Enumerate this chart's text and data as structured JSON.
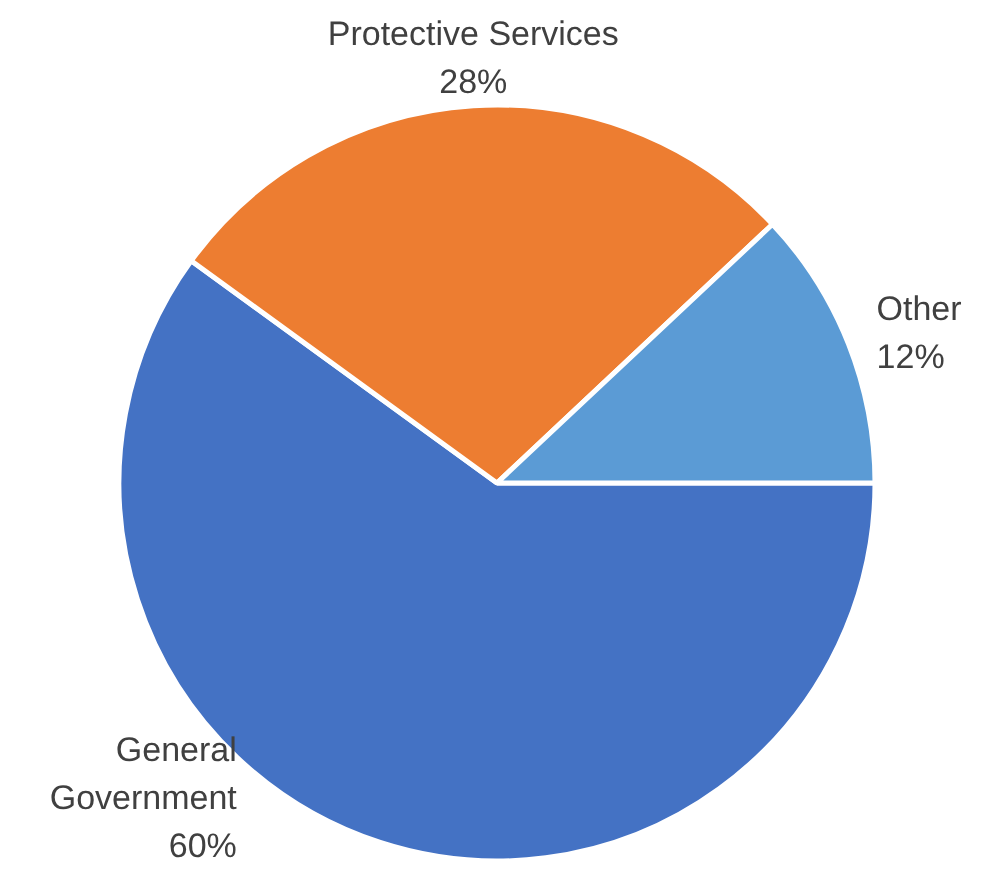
{
  "chart_data": {
    "type": "pie",
    "categories": [
      "General Government",
      "Protective Services",
      "Other"
    ],
    "values": [
      60,
      28,
      12
    ],
    "colors": [
      "#4472c4",
      "#ed7d31",
      "#5b9bd5"
    ],
    "value_labels": [
      "60%",
      "28%",
      "12%"
    ],
    "legend": false
  }
}
